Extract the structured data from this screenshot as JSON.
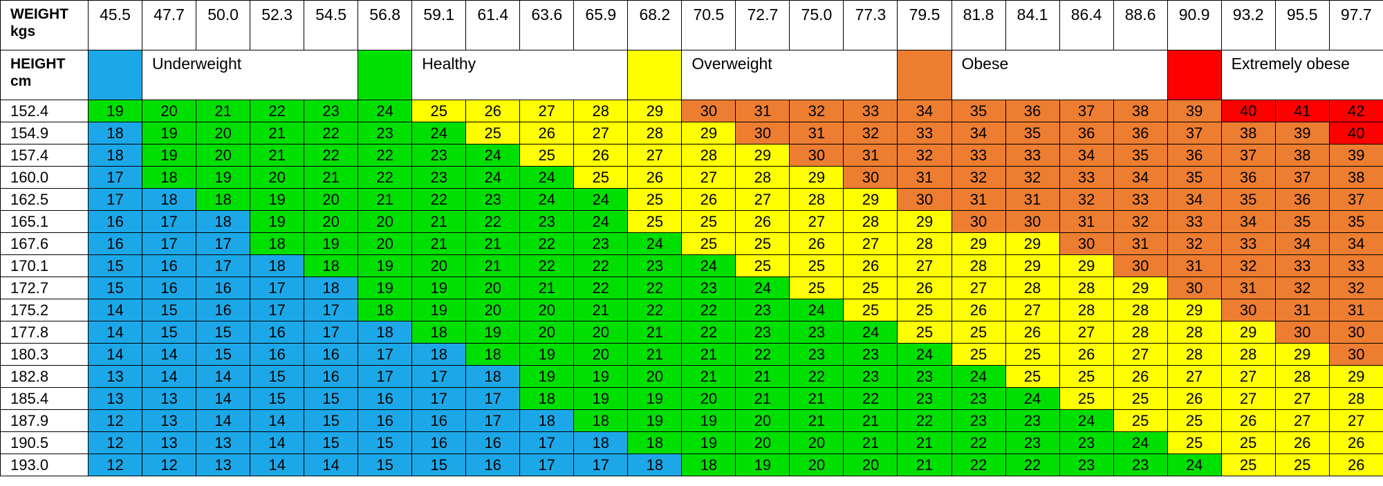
{
  "labels": {
    "weight": "WEIGHT kgs",
    "height": "HEIGHT cm"
  },
  "colors": {
    "underweight": "#1CA8E8",
    "healthy": "#00E000",
    "overweight": "#FFFF00",
    "obese": "#ED7D31",
    "extremely_obese": "#FF0000"
  },
  "legend": [
    {
      "category": "Underweight",
      "color": "#1CA8E8"
    },
    {
      "category": "Healthy",
      "color": "#00E000"
    },
    {
      "category": "Overweight",
      "color": "#FFFF00"
    },
    {
      "category": "Obese",
      "color": "#ED7D31"
    },
    {
      "category": "Extremely obese",
      "color": "#FF0000"
    }
  ],
  "chart_data": {
    "type": "heatmap",
    "x": [
      "45.5",
      "47.7",
      "50.0",
      "52.3",
      "54.5",
      "56.8",
      "59.1",
      "61.4",
      "63.6",
      "65.9",
      "68.2",
      "70.5",
      "72.7",
      "75.0",
      "77.3",
      "79.5",
      "81.8",
      "84.1",
      "86.4",
      "88.6",
      "90.9",
      "93.2",
      "95.5",
      "97.7"
    ],
    "y": [
      "152.4",
      "154.9",
      "157.4",
      "160.0",
      "162.5",
      "165.1",
      "167.6",
      "170.1",
      "172.7",
      "175.2",
      "177.8",
      "180.3",
      "182.8",
      "185.4",
      "187.9",
      "190.5",
      "193.0"
    ],
    "values": [
      [
        19,
        20,
        21,
        22,
        23,
        24,
        25,
        26,
        27,
        28,
        29,
        30,
        31,
        32,
        33,
        34,
        35,
        36,
        37,
        38,
        39,
        40,
        41,
        42
      ],
      [
        18,
        19,
        20,
        21,
        22,
        23,
        24,
        25,
        26,
        27,
        28,
        29,
        30,
        31,
        32,
        33,
        34,
        35,
        36,
        36,
        37,
        38,
        39,
        40
      ],
      [
        18,
        19,
        20,
        21,
        22,
        22,
        23,
        24,
        25,
        26,
        27,
        28,
        29,
        30,
        31,
        32,
        33,
        33,
        34,
        35,
        36,
        37,
        38,
        39
      ],
      [
        17,
        18,
        19,
        20,
        21,
        22,
        23,
        24,
        24,
        25,
        26,
        27,
        28,
        29,
        30,
        31,
        32,
        32,
        33,
        34,
        35,
        36,
        37,
        38
      ],
      [
        17,
        18,
        18,
        19,
        20,
        21,
        22,
        23,
        24,
        24,
        25,
        26,
        27,
        28,
        29,
        30,
        31,
        31,
        32,
        33,
        34,
        35,
        36,
        37
      ],
      [
        16,
        17,
        18,
        19,
        20,
        20,
        21,
        22,
        23,
        24,
        25,
        25,
        26,
        27,
        28,
        29,
        30,
        30,
        31,
        32,
        33,
        34,
        35,
        35
      ],
      [
        16,
        17,
        17,
        18,
        19,
        20,
        21,
        21,
        22,
        23,
        24,
        25,
        25,
        26,
        27,
        28,
        29,
        29,
        30,
        31,
        32,
        33,
        34,
        34
      ],
      [
        15,
        16,
        17,
        18,
        18,
        19,
        20,
        21,
        22,
        22,
        23,
        24,
        25,
        25,
        26,
        27,
        28,
        29,
        29,
        30,
        31,
        32,
        33,
        33
      ],
      [
        15,
        16,
        16,
        17,
        18,
        19,
        19,
        20,
        21,
        22,
        22,
        23,
        24,
        25,
        25,
        26,
        27,
        28,
        28,
        29,
        30,
        31,
        32,
        32
      ],
      [
        14,
        15,
        16,
        17,
        17,
        18,
        19,
        20,
        20,
        21,
        22,
        22,
        23,
        24,
        25,
        25,
        26,
        27,
        28,
        28,
        29,
        30,
        31,
        31
      ],
      [
        14,
        15,
        15,
        16,
        17,
        18,
        18,
        19,
        20,
        20,
        21,
        22,
        23,
        23,
        24,
        25,
        25,
        26,
        27,
        28,
        28,
        29,
        30,
        30
      ],
      [
        14,
        14,
        15,
        16,
        16,
        17,
        18,
        18,
        19,
        20,
        21,
        21,
        22,
        23,
        23,
        24,
        25,
        25,
        26,
        27,
        28,
        28,
        29,
        30
      ],
      [
        13,
        14,
        14,
        15,
        16,
        17,
        17,
        18,
        19,
        19,
        20,
        21,
        21,
        22,
        23,
        23,
        24,
        25,
        25,
        26,
        27,
        27,
        28,
        29
      ],
      [
        13,
        13,
        14,
        15,
        15,
        16,
        17,
        17,
        18,
        19,
        19,
        20,
        21,
        21,
        22,
        23,
        23,
        24,
        25,
        25,
        26,
        27,
        27,
        28
      ],
      [
        12,
        13,
        14,
        14,
        15,
        16,
        16,
        17,
        18,
        18,
        19,
        19,
        20,
        21,
        21,
        22,
        23,
        23,
        24,
        25,
        25,
        26,
        27,
        27
      ],
      [
        12,
        13,
        13,
        14,
        15,
        15,
        16,
        16,
        17,
        18,
        18,
        19,
        20,
        20,
        21,
        21,
        22,
        23,
        23,
        24,
        25,
        25,
        26,
        26
      ],
      [
        12,
        12,
        13,
        14,
        14,
        15,
        15,
        16,
        17,
        17,
        18,
        18,
        19,
        20,
        20,
        21,
        22,
        22,
        23,
        23,
        24,
        25,
        25,
        26
      ]
    ],
    "categories_grid": [
      "HHHHHHOOOOOBBBBBBBBBBRRR",
      "UHHHHHHOOOOOBBBBBBBBBBBR",
      "UHHHHHHHOOOOOBBBBBBBBBBB",
      "UHHHHHHHHOOOOOBBBBBBBBBB",
      "UUHHHHHHHHOOOOOBBBBBBBBB",
      "UUUHHHHHHHOOOOOOBBBBBBBB",
      "UUUHHHHHHHHOOOOOOOBBBBBB",
      "UUUUHHHHHHHHOOOOOOOBBBBB",
      "UUUUUHHHHHHHHOOOOOOOBBBB",
      "UUUUUHHHHHHHHHOOOOOOOBBB",
      "UUUUUUHHHHHHHHHOOOOOOOBB",
      "UUUUUUUHHHHHHHHHOOOOOOOB",
      "UUUUUUUUHHHHHHHHHOOOOOOO",
      "UUUUUUUUHHHHHHHHHHOOOOOO",
      "UUUUUUUUUHHHHHHHHHHOOOOO",
      "UUUUUUUUUUHHHHHHHHHHOOOO",
      "UUUUUUUUUUUHHHHHHHHHHOOO"
    ],
    "category_key": {
      "U": "underweight",
      "H": "healthy",
      "O": "overweight",
      "B": "obese",
      "R": "extremely_obese"
    }
  }
}
